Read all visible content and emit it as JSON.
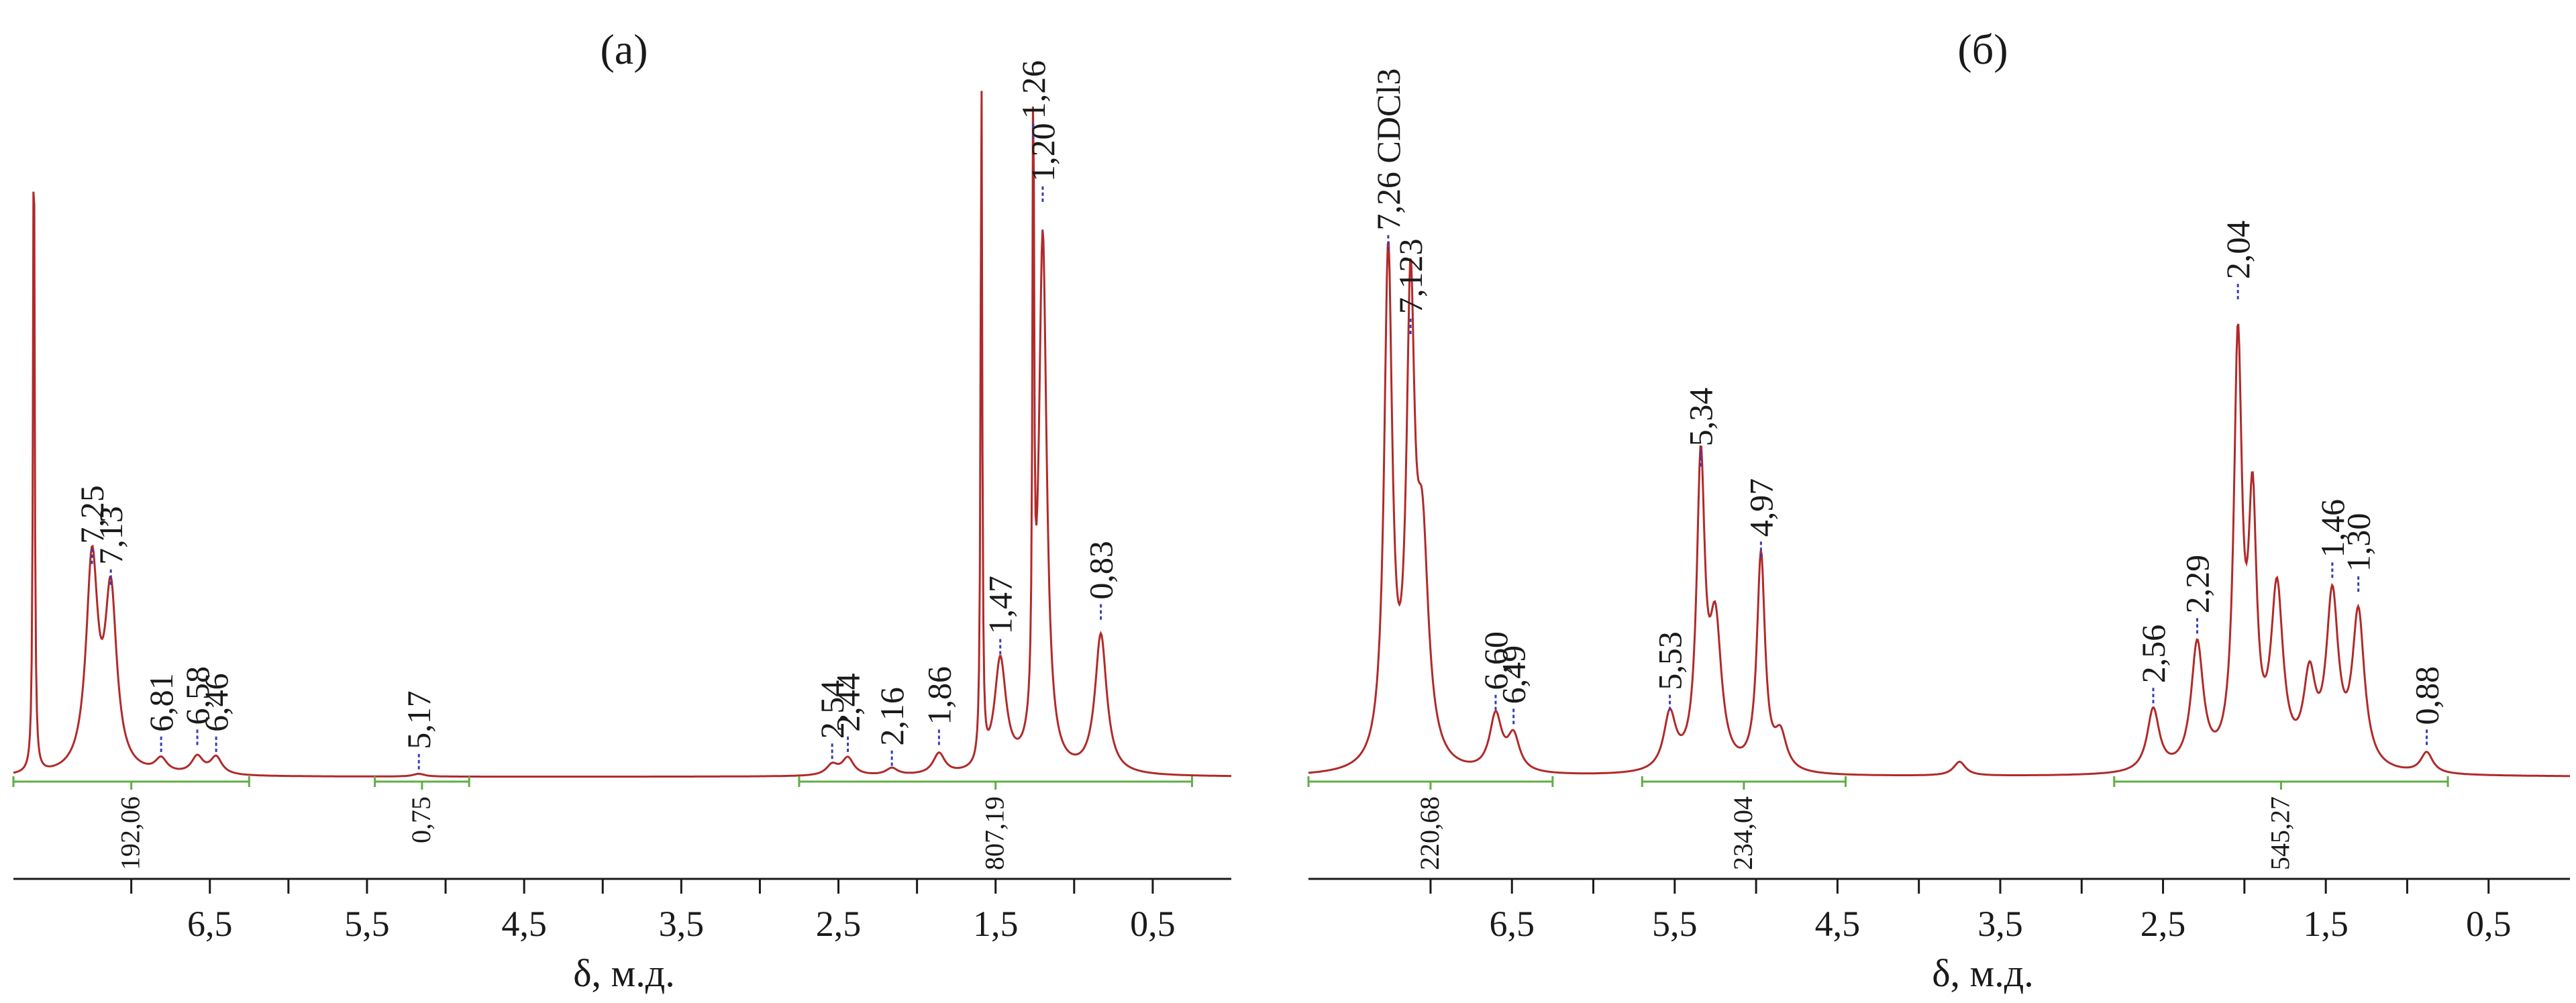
{
  "colors": {
    "spectrum": "#b02a2a",
    "integral": "#5fae43",
    "peak_marker": "#3b3bb8",
    "axis": "#1a1a1a"
  },
  "chart_data": [
    {
      "type": "line",
      "title": "(а)",
      "xlabel": "δ, м.д.",
      "ylabel": "",
      "xlim": [
        7.75,
        0.0
      ],
      "xticks": [
        6.5,
        5.5,
        4.5,
        3.5,
        2.5,
        1.5,
        0.5
      ],
      "xtick_labels": [
        "6,5",
        "5,5",
        "4,5",
        "3,5",
        "2,5",
        "1,5",
        "0,5"
      ],
      "ylim": [
        0,
        1
      ],
      "grid": false,
      "peaks": [
        {
          "x": 7.62,
          "h": 1.0
        },
        {
          "x": 7.25,
          "h": 0.3
        },
        {
          "x": 7.13,
          "h": 0.25
        },
        {
          "x": 6.81,
          "h": 0.02
        },
        {
          "x": 6.58,
          "h": 0.025
        },
        {
          "x": 6.46,
          "h": 0.025
        },
        {
          "x": 5.17,
          "h": 0.004
        },
        {
          "x": 2.54,
          "h": 0.015
        },
        {
          "x": 2.44,
          "h": 0.025
        },
        {
          "x": 2.16,
          "h": 0.01
        },
        {
          "x": 1.86,
          "h": 0.03
        },
        {
          "x": 1.59,
          "h": 1.0
        },
        {
          "x": 1.47,
          "h": 0.16
        },
        {
          "x": 1.26,
          "h": 0.91
        },
        {
          "x": 1.2,
          "h": 0.77
        },
        {
          "x": 0.83,
          "h": 0.2
        }
      ],
      "peak_labels": [
        {
          "x": 7.25,
          "y": 0.3,
          "text": "7,25"
        },
        {
          "x": 7.13,
          "y": 0.27,
          "text": "7,13"
        },
        {
          "x": 6.81,
          "y": 0.03,
          "text": "6,81"
        },
        {
          "x": 6.58,
          "y": 0.04,
          "text": "6,58"
        },
        {
          "x": 6.46,
          "y": 0.03,
          "text": "6,46"
        },
        {
          "x": 5.17,
          "y": 0.005,
          "text": "5,17"
        },
        {
          "x": 2.54,
          "y": 0.02,
          "text": "2,54"
        },
        {
          "x": 2.44,
          "y": 0.03,
          "text": "2,44"
        },
        {
          "x": 2.16,
          "y": 0.01,
          "text": "2,16"
        },
        {
          "x": 1.86,
          "y": 0.04,
          "text": "1,86"
        },
        {
          "x": 1.47,
          "y": 0.17,
          "text": "1,47"
        },
        {
          "x": 1.26,
          "y": 0.91,
          "text": "1,26"
        },
        {
          "x": 1.2,
          "y": 0.82,
          "text": "1,20"
        },
        {
          "x": 0.83,
          "y": 0.22,
          "text": "0,83"
        }
      ],
      "integrals": [
        {
          "from": 7.75,
          "to": 6.25,
          "value": "192,06"
        },
        {
          "from": 5.45,
          "to": 4.85,
          "value": "0,75"
        },
        {
          "from": 2.75,
          "to": 0.25,
          "value": "807,19"
        }
      ]
    },
    {
      "type": "line",
      "title": "(б)",
      "xlabel": "δ, м.д.",
      "ylabel": "",
      "xlim": [
        7.75,
        0.0
      ],
      "xticks": [
        6.5,
        5.5,
        4.5,
        3.5,
        2.5,
        1.5,
        0.5
      ],
      "xtick_labels": [
        "6,5",
        "5,5",
        "4,5",
        "3,5",
        "2,5",
        "1,5",
        "0,5"
      ],
      "ylim": [
        0,
        1
      ],
      "grid": false,
      "peaks": [
        {
          "x": 7.26,
          "h": 0.73
        },
        {
          "x": 7.123,
          "h": 0.63
        },
        {
          "x": 7.05,
          "h": 0.3
        },
        {
          "x": 6.6,
          "h": 0.08
        },
        {
          "x": 6.49,
          "h": 0.05
        },
        {
          "x": 5.53,
          "h": 0.08
        },
        {
          "x": 5.34,
          "h": 0.43
        },
        {
          "x": 5.25,
          "h": 0.2
        },
        {
          "x": 4.97,
          "h": 0.31
        },
        {
          "x": 4.85,
          "h": 0.05
        },
        {
          "x": 3.75,
          "h": 0.02
        },
        {
          "x": 2.56,
          "h": 0.09
        },
        {
          "x": 2.29,
          "h": 0.18
        },
        {
          "x": 2.04,
          "h": 0.6
        },
        {
          "x": 1.95,
          "h": 0.35
        },
        {
          "x": 1.8,
          "h": 0.25
        },
        {
          "x": 1.6,
          "h": 0.12
        },
        {
          "x": 1.46,
          "h": 0.24
        },
        {
          "x": 1.3,
          "h": 0.22
        },
        {
          "x": 0.88,
          "h": 0.03
        }
      ],
      "peak_labels": [
        {
          "x": 7.26,
          "y": 0.75,
          "text": "7,26 CDCl3"
        },
        {
          "x": 7.123,
          "y": 0.63,
          "text": "7,123"
        },
        {
          "x": 6.6,
          "y": 0.09,
          "text": "6,60"
        },
        {
          "x": 6.49,
          "y": 0.07,
          "text": "6,49"
        },
        {
          "x": 5.53,
          "y": 0.09,
          "text": "5,53"
        },
        {
          "x": 5.34,
          "y": 0.44,
          "text": "5,34"
        },
        {
          "x": 4.97,
          "y": 0.31,
          "text": "4,97"
        },
        {
          "x": 2.56,
          "y": 0.1,
          "text": "2,56"
        },
        {
          "x": 2.29,
          "y": 0.2,
          "text": "2,29"
        },
        {
          "x": 2.04,
          "y": 0.68,
          "text": "2,04"
        },
        {
          "x": 1.46,
          "y": 0.28,
          "text": "1,46"
        },
        {
          "x": 1.3,
          "y": 0.26,
          "text": "1,30"
        },
        {
          "x": 0.88,
          "y": 0.04,
          "text": "0,88"
        }
      ],
      "integrals": [
        {
          "from": 7.75,
          "to": 6.25,
          "value": "220,68"
        },
        {
          "from": 5.7,
          "to": 4.45,
          "value": "234,04"
        },
        {
          "from": 2.8,
          "to": 0.75,
          "value": "545,27"
        }
      ]
    }
  ]
}
